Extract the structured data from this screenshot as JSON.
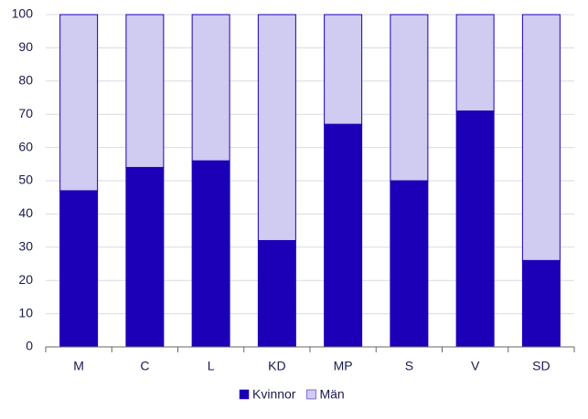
{
  "chart_data": {
    "type": "stacked-bar",
    "categories": [
      "M",
      "C",
      "L",
      "KD",
      "MP",
      "S",
      "V",
      "SD"
    ],
    "series": [
      {
        "name": "Kvinnor",
        "color": "#1c00b8",
        "values": [
          47,
          54,
          56,
          32,
          67,
          50,
          71,
          26
        ]
      },
      {
        "name": "Män",
        "color": "#cfcbf1",
        "values": [
          53,
          46,
          44,
          68,
          33,
          50,
          29,
          74
        ]
      }
    ],
    "ylim": [
      0,
      100
    ],
    "yticks": [
      0,
      10,
      20,
      30,
      40,
      50,
      60,
      70,
      80,
      90,
      100
    ],
    "grid": true,
    "legend": "bottom"
  }
}
